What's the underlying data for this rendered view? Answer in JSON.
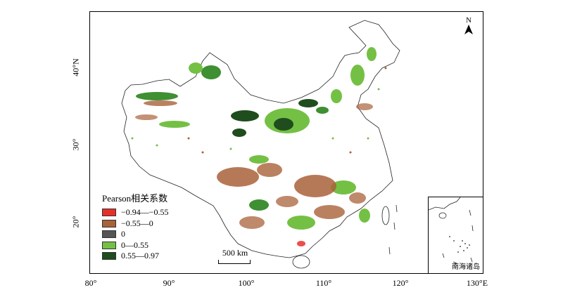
{
  "map": {
    "x_ticks": [
      "80°",
      "90°",
      "100°",
      "110°",
      "120°",
      "130°E"
    ],
    "y_ticks": [
      "40°N",
      "30°",
      "20°"
    ]
  },
  "legend": {
    "title": "Pearson相关系数",
    "items": [
      {
        "label": "−0.94—−0.55",
        "color": "#e8302b"
      },
      {
        "label": "−0.55—0",
        "color": "#a9623a"
      },
      {
        "label": "0",
        "color": "#555555"
      },
      {
        "label": "0—0.55",
        "color": "#74c044"
      },
      {
        "label": "0.55—0.97",
        "color": "#1f4d1e"
      }
    ]
  },
  "scale_bar": {
    "label": "500 km"
  },
  "north_arrow": {
    "label": "N"
  },
  "inset": {
    "label": "南海诸岛"
  }
}
